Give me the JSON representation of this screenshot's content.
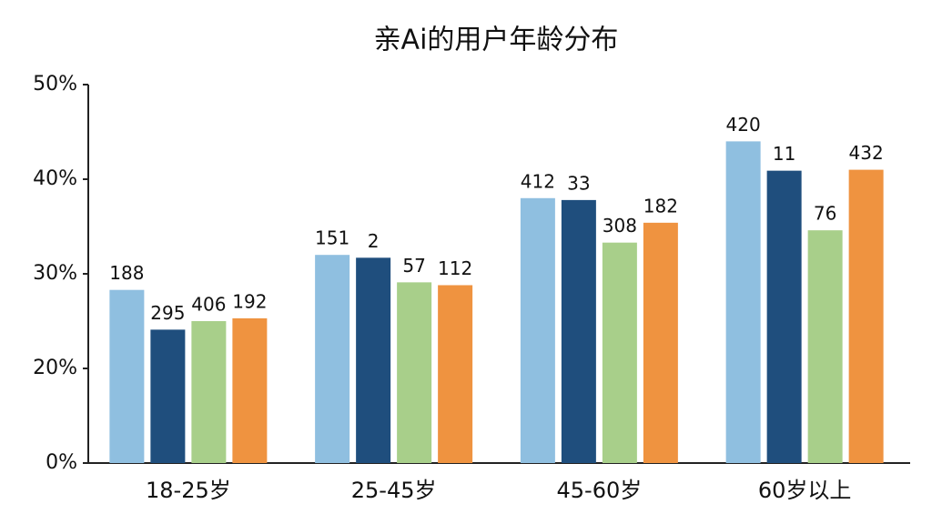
{
  "chart_data": {
    "type": "bar",
    "title": "亲Ai的用户年龄分布",
    "categories": [
      "18-25岁",
      "25-45岁",
      "45-60岁",
      "60岁以上"
    ],
    "series": [
      {
        "color": "#8fbfe0",
        "values": [
          28.3,
          32.0,
          38.0,
          44.0
        ],
        "bar_labels": [
          "188",
          "151",
          "412",
          "420"
        ]
      },
      {
        "color": "#1f4e7d",
        "values": [
          24.1,
          31.7,
          37.8,
          40.9
        ],
        "bar_labels": [
          "295",
          "2",
          "33",
          "11"
        ]
      },
      {
        "color": "#a8cf8a",
        "values": [
          25.0,
          29.1,
          33.3,
          34.6
        ],
        "bar_labels": [
          "406",
          "57",
          "308",
          "76"
        ]
      },
      {
        "color": "#ef9340",
        "values": [
          25.3,
          28.8,
          35.4,
          41.0
        ],
        "bar_labels": [
          "192",
          "112",
          "182",
          "432"
        ]
      }
    ],
    "ylim": [
      0,
      50
    ],
    "yticks": [
      {
        "value": 0,
        "label": "0%"
      },
      {
        "value": 20,
        "label": "20%"
      },
      {
        "value": 30,
        "label": "30%"
      },
      {
        "value": 40,
        "label": "40%"
      },
      {
        "value": 50,
        "label": "50%"
      }
    ],
    "grid": false
  }
}
